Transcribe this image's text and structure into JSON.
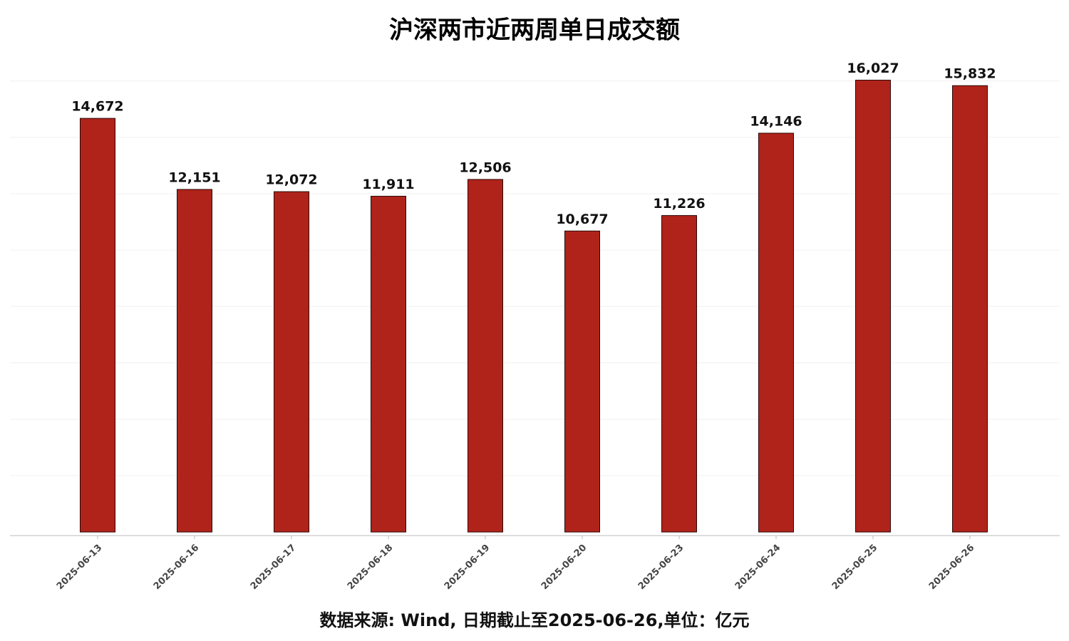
{
  "chart_data": {
    "type": "bar",
    "title": "沪深两市近两周单日成交额",
    "footer": "数据来源: Wind, 日期截止至2025-06-26,单位：亿元",
    "categories": [
      "2025-06-13",
      "2025-06-16",
      "2025-06-17",
      "2025-06-18",
      "2025-06-19",
      "2025-06-20",
      "2025-06-23",
      "2025-06-24",
      "2025-06-25",
      "2025-06-26"
    ],
    "values": [
      14672,
      12151,
      12072,
      11911,
      12506,
      10677,
      11226,
      14146,
      16027,
      15832
    ],
    "value_labels": [
      "14,672",
      "12,151",
      "12,072",
      "11,911",
      "12,506",
      "10,677",
      "11,226",
      "14,146",
      "16,027",
      "15,832"
    ],
    "color": "#b0231a",
    "ylim": [
      0,
      17000
    ],
    "yticks": [
      2000,
      4000,
      6000,
      8000,
      10000,
      12000,
      14000,
      16000
    ],
    "grid": true
  }
}
